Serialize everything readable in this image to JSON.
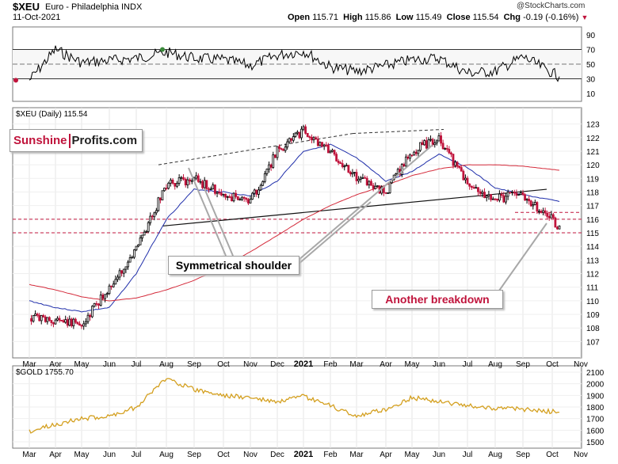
{
  "header": {
    "symbol": "$XEU",
    "name": "Euro - Philadelphia INDX",
    "date": "11-Oct-2021",
    "open_label": "Open",
    "open": "115.71",
    "high_label": "High",
    "high": "115.86",
    "low_label": "Low",
    "low": "115.49",
    "close_label": "Close",
    "close": "115.54",
    "chg_label": "Chg",
    "chg": "-0.19 (-0.16%)",
    "watermark": "@StockCharts.com"
  },
  "rsi": {
    "ticks": [
      "90",
      "70",
      "50",
      "30",
      "10"
    ],
    "overbought": 70,
    "oversold": 30
  },
  "main_legend": "$XEU (Daily) 115.54",
  "logo": {
    "part1": "Sunshine",
    "part2": "Profits.com"
  },
  "annotations": {
    "shoulder": "Symmetrical shoulder",
    "breakdown": "Another breakdown"
  },
  "gold": {
    "legend": "$GOLD 1755.70",
    "ticks": [
      "2100",
      "2000",
      "1900",
      "1800",
      "1700",
      "1600",
      "1500"
    ]
  },
  "x_axis": {
    "labels": [
      "Mar",
      "Apr",
      "May",
      "Jun",
      "Jul",
      "Aug",
      "Sep",
      "Oct",
      "Nov",
      "Dec",
      "2021",
      "Feb",
      "Mar",
      "Apr",
      "May",
      "Jun",
      "Jul",
      "Aug",
      "Sep",
      "Oct",
      "Nov"
    ]
  },
  "colors": {
    "up": "#000000",
    "down": "#c0143c",
    "ma50": "#1f2eaa",
    "ma200": "#d42a3a",
    "rsi_line": "#000000",
    "gold_line": "#d4a020",
    "accent": "#c0143c"
  },
  "chart_data": [
    {
      "type": "line",
      "title": "RSI(14)",
      "ylim": [
        0,
        100
      ],
      "x": [
        "Mar",
        "Apr",
        "May",
        "Jun",
        "Jul",
        "Aug",
        "Sep",
        "Oct",
        "Nov",
        "Dec",
        "2021",
        "Feb",
        "Mar",
        "Apr",
        "May",
        "Jun",
        "Jul",
        "Aug",
        "Sep",
        "Oct"
      ],
      "series": [
        {
          "name": "RSI",
          "values": [
            28,
            70,
            52,
            55,
            58,
            66,
            58,
            56,
            48,
            62,
            68,
            46,
            40,
            48,
            56,
            58,
            38,
            40,
            60,
            33
          ]
        }
      ]
    },
    {
      "type": "line",
      "title": "$XEU (Daily) 115.54",
      "ylabel": "Price",
      "ylim": [
        106,
        124
      ],
      "y_ticks": [
        107,
        108,
        109,
        110,
        111,
        112,
        113,
        114,
        115,
        116,
        117,
        118,
        119,
        120,
        121,
        122,
        123
      ],
      "x": [
        "Mar",
        "Apr",
        "May",
        "Jun",
        "Jul",
        "Aug",
        "Sep",
        "Oct",
        "Nov",
        "Dec",
        "2021",
        "Feb",
        "Mar",
        "Apr",
        "May",
        "Jun",
        "Jul",
        "Aug",
        "Sep",
        "Oct"
      ],
      "series": [
        {
          "name": "$XEU close",
          "values": [
            108.8,
            108.6,
            108.2,
            111.0,
            113.8,
            118.5,
            119.0,
            117.8,
            117.3,
            121.0,
            122.5,
            121.0,
            119.0,
            118.0,
            121.0,
            122.0,
            118.5,
            117.5,
            117.8,
            115.5
          ]
        },
        {
          "name": "MA(50)",
          "values": [
            110.0,
            109.5,
            109.2,
            109.5,
            112.0,
            116.0,
            118.2,
            118.0,
            117.7,
            118.8,
            121.0,
            121.5,
            120.5,
            118.8,
            119.5,
            120.8,
            119.8,
            118.3,
            117.8,
            117.3
          ]
        },
        {
          "name": "MA(200)",
          "values": [
            111.2,
            110.8,
            110.3,
            110.0,
            110.2,
            110.8,
            111.5,
            112.5,
            113.6,
            114.8,
            116.0,
            117.0,
            117.8,
            118.5,
            119.2,
            119.7,
            120.0,
            120.0,
            119.9,
            119.6
          ]
        }
      ],
      "reference_lines": [
        116,
        115
      ]
    },
    {
      "type": "line",
      "title": "$GOLD 1755.70",
      "ylim": [
        1500,
        2100
      ],
      "x": [
        "Mar",
        "Apr",
        "May",
        "Jun",
        "Jul",
        "Aug",
        "Sep",
        "Oct",
        "Nov",
        "Dec",
        "2021",
        "Feb",
        "Mar",
        "Apr",
        "May",
        "Jun",
        "Jul",
        "Aug",
        "Sep",
        "Oct"
      ],
      "series": [
        {
          "name": "$GOLD",
          "values": [
            1590,
            1650,
            1700,
            1720,
            1800,
            2050,
            1950,
            1900,
            1880,
            1840,
            1890,
            1810,
            1720,
            1780,
            1880,
            1850,
            1810,
            1790,
            1780,
            1755
          ]
        }
      ]
    }
  ]
}
